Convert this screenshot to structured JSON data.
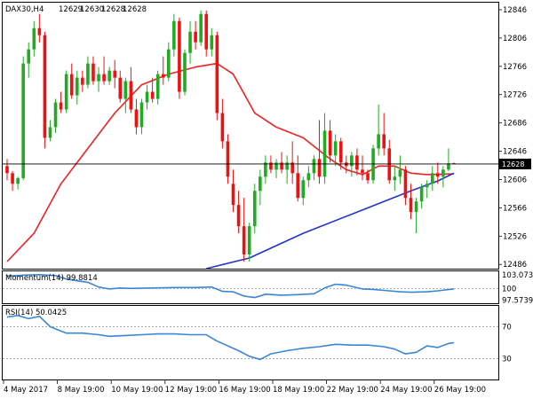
{
  "chart_data": {
    "type": "candlestick",
    "header": {
      "symbol_tf": "DAX30,H4",
      "ohlc": [
        "12629",
        "12630",
        "12628",
        "12628"
      ]
    },
    "price_axis": {
      "ticks": [
        "12846",
        "12806",
        "12766",
        "12726",
        "12686",
        "12646",
        "12606",
        "12566",
        "12526",
        "12486"
      ],
      "tick_values": [
        12846,
        12806,
        12766,
        12726,
        12686,
        12646,
        12606,
        12566,
        12526,
        12486
      ],
      "range": [
        12480,
        12856
      ],
      "current_price": 12628,
      "current_price_label": "12628"
    },
    "time_axis": {
      "labels": [
        "4 May 2017",
        "8 May 19:00",
        "10 May 19:00",
        "12 May 19:00",
        "16 May 19:00",
        "18 May 19:00",
        "22 May 19:00",
        "24 May 19:00",
        "26 May 19:00"
      ],
      "label_bar_index": [
        0,
        10,
        20,
        30,
        40,
        50,
        60,
        70,
        80
      ]
    },
    "colors": {
      "bull": "#22aa22",
      "bear": "#ee1111",
      "ma_fast": "#ee2222",
      "ma_slow": "#2233cc",
      "indicator": "#3a86d6",
      "level": "#999999",
      "frame": "#000000"
    },
    "candles": [
      [
        12625,
        12635,
        12605,
        12615
      ],
      [
        12615,
        12618,
        12590,
        12600
      ],
      [
        12600,
        12610,
        12592,
        12608
      ],
      [
        12608,
        12780,
        12605,
        12770
      ],
      [
        12770,
        12800,
        12750,
        12790
      ],
      [
        12790,
        12830,
        12780,
        12820
      ],
      [
        12820,
        12840,
        12800,
        12810
      ],
      [
        12810,
        12815,
        12650,
        12665
      ],
      [
        12665,
        12690,
        12660,
        12680
      ],
      [
        12680,
        12720,
        12672,
        12715
      ],
      [
        12715,
        12730,
        12700,
        12705
      ],
      [
        12705,
        12760,
        12700,
        12755
      ],
      [
        12755,
        12770,
        12720,
        12725
      ],
      [
        12725,
        12760,
        12712,
        12750
      ],
      [
        12750,
        12760,
        12730,
        12740
      ],
      [
        12740,
        12780,
        12735,
        12770
      ],
      [
        12770,
        12780,
        12740,
        12745
      ],
      [
        12745,
        12765,
        12730,
        12755
      ],
      [
        12755,
        12780,
        12740,
        12745
      ],
      [
        12745,
        12765,
        12740,
        12760
      ],
      [
        12760,
        12775,
        12735,
        12750
      ],
      [
        12750,
        12760,
        12715,
        12720
      ],
      [
        12720,
        12750,
        12700,
        12745
      ],
      [
        12745,
        12765,
        12700,
        12705
      ],
      [
        12705,
        12720,
        12670,
        12680
      ],
      [
        12680,
        12720,
        12670,
        12715
      ],
      [
        12715,
        12740,
        12705,
        12730
      ],
      [
        12730,
        12750,
        12715,
        12720
      ],
      [
        12720,
        12760,
        12712,
        12755
      ],
      [
        12755,
        12780,
        12740,
        12750
      ],
      [
        12750,
        12800,
        12745,
        12790
      ],
      [
        12790,
        12840,
        12780,
        12830
      ],
      [
        12830,
        12835,
        12720,
        12730
      ],
      [
        12730,
        12790,
        12725,
        12785
      ],
      [
        12785,
        12830,
        12770,
        12815
      ],
      [
        12815,
        12830,
        12790,
        12800
      ],
      [
        12800,
        12845,
        12795,
        12840
      ],
      [
        12840,
        12845,
        12780,
        12790
      ],
      [
        12790,
        12820,
        12780,
        12810
      ],
      [
        12810,
        12815,
        12690,
        12700
      ],
      [
        12700,
        12720,
        12650,
        12660
      ],
      [
        12660,
        12670,
        12600,
        12610
      ],
      [
        12600,
        12620,
        12560,
        12570
      ],
      [
        12570,
        12590,
        12530,
        12540
      ],
      [
        12540,
        12580,
        12490,
        12500
      ],
      [
        12500,
        12545,
        12490,
        12540
      ],
      [
        12540,
        12600,
        12530,
        12590
      ],
      [
        12590,
        12620,
        12570,
        12610
      ],
      [
        12610,
        12640,
        12600,
        12630
      ],
      [
        12630,
        12640,
        12615,
        12620
      ],
      [
        12620,
        12635,
        12608,
        12630
      ],
      [
        12630,
        12645,
        12615,
        12620
      ],
      [
        12620,
        12640,
        12600,
        12630
      ],
      [
        12630,
        12660,
        12600,
        12615
      ],
      [
        12615,
        12640,
        12575,
        12580
      ],
      [
        12580,
        12610,
        12570,
        12605
      ],
      [
        12605,
        12625,
        12595,
        12615
      ],
      [
        12615,
        12640,
        12605,
        12635
      ],
      [
        12635,
        12690,
        12600,
        12610
      ],
      [
        12610,
        12700,
        12600,
        12675
      ],
      [
        12675,
        12690,
        12630,
        12640
      ],
      [
        12640,
        12670,
        12625,
        12660
      ],
      [
        12660,
        12665,
        12620,
        12630
      ],
      [
        12630,
        12640,
        12615,
        12625
      ],
      [
        12625,
        12645,
        12610,
        12640
      ],
      [
        12640,
        12650,
        12612,
        12620
      ],
      [
        12620,
        12640,
        12605,
        12615
      ],
      [
        12615,
        12620,
        12600,
        12605
      ],
      [
        12605,
        12655,
        12600,
        12650
      ],
      [
        12650,
        12712,
        12640,
        12670
      ],
      [
        12670,
        12700,
        12640,
        12650
      ],
      [
        12650,
        12662,
        12600,
        12605
      ],
      [
        12605,
        12625,
        12590,
        12610
      ],
      [
        12610,
        12640,
        12600,
        12620
      ],
      [
        12620,
        12625,
        12570,
        12580
      ],
      [
        12580,
        12600,
        12550,
        12560
      ],
      [
        12560,
        12580,
        12530,
        12575
      ],
      [
        12575,
        12600,
        12565,
        12595
      ],
      [
        12595,
        12605,
        12580,
        12600
      ],
      [
        12600,
        12625,
        12590,
        12615
      ],
      [
        12615,
        12630,
        12600,
        12610
      ],
      [
        12610,
        12625,
        12595,
        12620
      ],
      [
        12620,
        12650,
        12618,
        12629
      ],
      [
        12629,
        12630,
        12628,
        12628
      ]
    ],
    "ma_fast": [
      [
        0,
        12490
      ],
      [
        5,
        12530
      ],
      [
        10,
        12600
      ],
      [
        15,
        12650
      ],
      [
        20,
        12700
      ],
      [
        25,
        12740
      ],
      [
        30,
        12755
      ],
      [
        35,
        12765
      ],
      [
        39,
        12770
      ],
      [
        42,
        12755
      ],
      [
        46,
        12700
      ],
      [
        50,
        12680
      ],
      [
        55,
        12665
      ],
      [
        60,
        12635
      ],
      [
        63,
        12620
      ],
      [
        66,
        12613
      ],
      [
        69,
        12625
      ],
      [
        72,
        12625
      ],
      [
        75,
        12615
      ],
      [
        78,
        12613
      ],
      [
        83,
        12614
      ]
    ],
    "ma_slow": [
      [
        37,
        12480
      ],
      [
        45,
        12495
      ],
      [
        55,
        12530
      ],
      [
        65,
        12560
      ],
      [
        75,
        12590
      ],
      [
        80,
        12604
      ],
      [
        83,
        12615
      ]
    ],
    "momentum": {
      "label": "Momentum(14) 99.8814",
      "axis_labels": [
        "103.0732",
        "100",
        "97.5739"
      ],
      "axis_values": [
        103.07,
        100,
        97.57
      ],
      "level": 100,
      "range": [
        96.9,
        103.6
      ],
      "values": [
        [
          0,
          102.6
        ],
        [
          3,
          102.8
        ],
        [
          6,
          102.9
        ],
        [
          9,
          102.7
        ],
        [
          11,
          102.0
        ],
        [
          13,
          101.6
        ],
        [
          15,
          101.3
        ],
        [
          17,
          100.3
        ],
        [
          19,
          99.9
        ],
        [
          21,
          100.1
        ],
        [
          23,
          100.0
        ],
        [
          27,
          100.1
        ],
        [
          31,
          100.2
        ],
        [
          35,
          100.2
        ],
        [
          38,
          100.3
        ],
        [
          40,
          99.4
        ],
        [
          42,
          99.3
        ],
        [
          44,
          98.4
        ],
        [
          46,
          98.1
        ],
        [
          48,
          98.8
        ],
        [
          51,
          98.6
        ],
        [
          54,
          98.7
        ],
        [
          57,
          98.9
        ],
        [
          59,
          100.1
        ],
        [
          61,
          100.9
        ],
        [
          63,
          100.7
        ],
        [
          66,
          99.9
        ],
        [
          68,
          99.8
        ],
        [
          70,
          99.6
        ],
        [
          73,
          99.3
        ],
        [
          75,
          99.2
        ],
        [
          78,
          99.3
        ],
        [
          80,
          99.5
        ],
        [
          83,
          99.9
        ]
      ]
    },
    "rsi": {
      "label": "RSI(14) 50.0425",
      "axis_labels": [
        "70",
        "30"
      ],
      "axis_values": [
        70,
        30
      ],
      "levels": [
        70,
        30
      ],
      "range": [
        4,
        96
      ],
      "values": [
        [
          0,
          82
        ],
        [
          2,
          84
        ],
        [
          4,
          80
        ],
        [
          6,
          83
        ],
        [
          8,
          70
        ],
        [
          11,
          62
        ],
        [
          14,
          62
        ],
        [
          17,
          60
        ],
        [
          19,
          58
        ],
        [
          22,
          59
        ],
        [
          25,
          60
        ],
        [
          28,
          61
        ],
        [
          31,
          61
        ],
        [
          34,
          60
        ],
        [
          37,
          60
        ],
        [
          39,
          52
        ],
        [
          41,
          46
        ],
        [
          43,
          40
        ],
        [
          45,
          33
        ],
        [
          47,
          29
        ],
        [
          49,
          36
        ],
        [
          52,
          40
        ],
        [
          55,
          43
        ],
        [
          58,
          45
        ],
        [
          61,
          48
        ],
        [
          64,
          47
        ],
        [
          67,
          47
        ],
        [
          70,
          45
        ],
        [
          72,
          42
        ],
        [
          74,
          36
        ],
        [
          76,
          38
        ],
        [
          78,
          46
        ],
        [
          80,
          44
        ],
        [
          82,
          49
        ],
        [
          83,
          50
        ]
      ]
    }
  }
}
